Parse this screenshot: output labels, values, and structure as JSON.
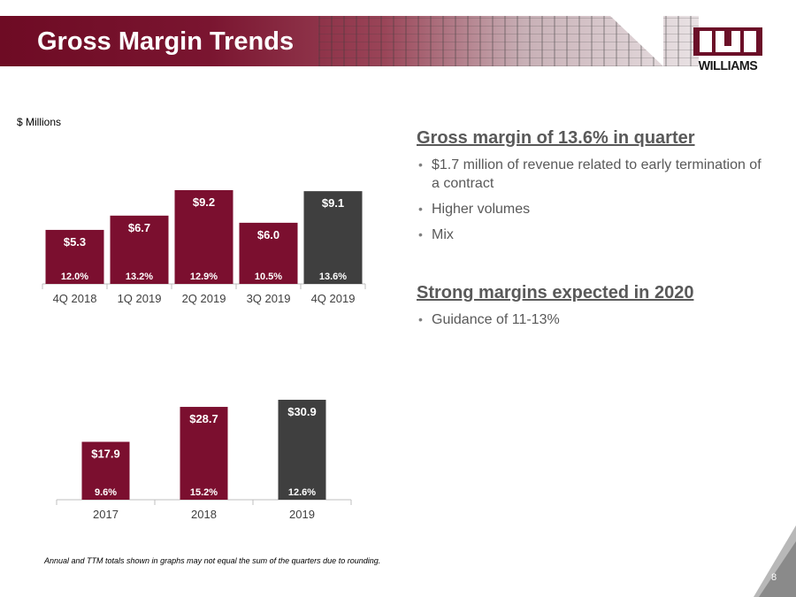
{
  "slide": {
    "title": "Gross Margin Trends",
    "logo_text": "WILLIAMS",
    "units_label": "$ Millions",
    "footnote": "Annual and TTM totals shown in graphs may not equal the sum of the quarters due to rounding.",
    "page_number": "8"
  },
  "colors": {
    "maroon": "#7b0f2f",
    "gray": "#3f3f3f"
  },
  "right_panel": {
    "section1": {
      "heading": "Gross margin of 13.6% in quarter",
      "bullets": [
        "$1.7 million of revenue related to early termination of a contract",
        "Higher volumes",
        "Mix"
      ]
    },
    "section2": {
      "heading": "Strong margins expected in 2020",
      "bullets": [
        "Guidance of 11-13%"
      ]
    }
  },
  "chart_data": [
    {
      "type": "bar",
      "title": "",
      "ylabel": "$ Millions",
      "categories": [
        "4Q 2018",
        "1Q 2019",
        "2Q 2019",
        "3Q 2019",
        "4Q 2019"
      ],
      "values": [
        5.3,
        6.7,
        9.2,
        6.0,
        9.1
      ],
      "value_labels": [
        "$5.3",
        "$6.7",
        "$9.2",
        "$6.0",
        "$9.1"
      ],
      "margin_labels": [
        "12.0%",
        "13.2%",
        "12.9%",
        "10.5%",
        "13.6%"
      ],
      "highlight_last": true,
      "ylim": [
        0,
        9.2
      ]
    },
    {
      "type": "bar",
      "title": "",
      "categories": [
        "2017",
        "2018",
        "2019"
      ],
      "values": [
        17.9,
        28.7,
        30.9
      ],
      "value_labels": [
        "$17.9",
        "$28.7",
        "$30.9"
      ],
      "margin_labels": [
        "9.6%",
        "15.2%",
        "12.6%"
      ],
      "highlight_last": true,
      "ylim": [
        0,
        30.9
      ]
    }
  ]
}
